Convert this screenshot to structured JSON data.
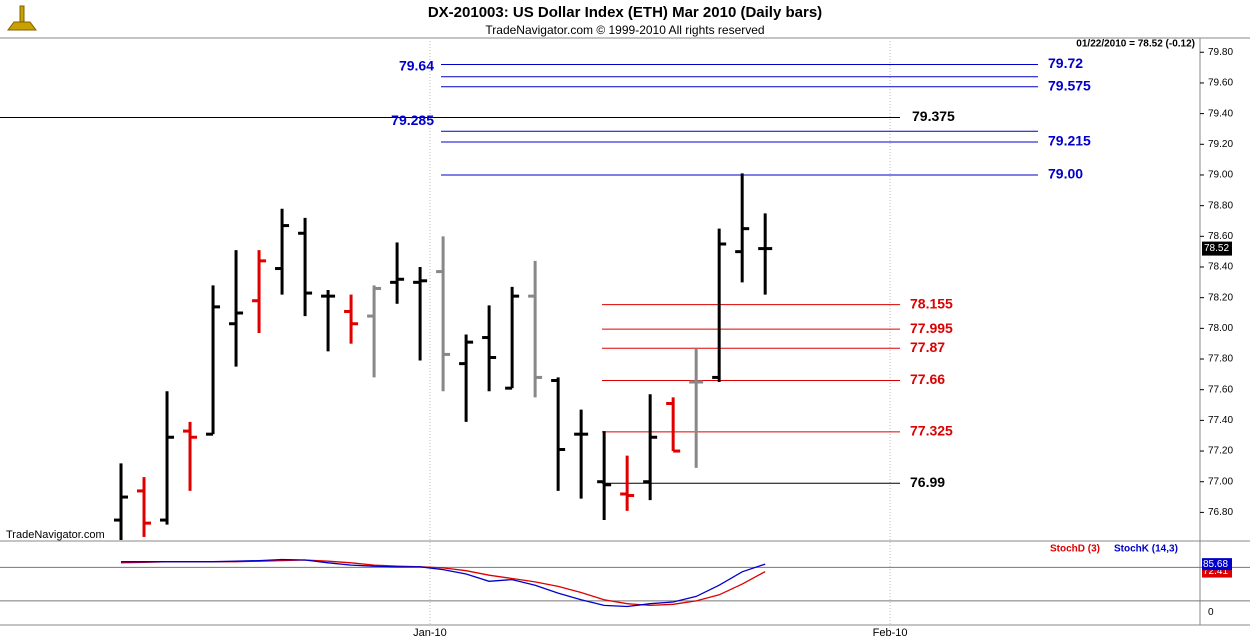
{
  "chart_data": [
    {
      "type": "ohlc",
      "title": "DX-201003:  US Dollar Index (ETH) Mar 2010  (Daily bars)",
      "subtitle": "TradeNavigator.com © 1999-2010 All rights reserved",
      "header": "01/22/2010 = 78.52 (-0.12)",
      "watermark": "TradeNavigator.com",
      "x": [
        0,
        1,
        2,
        3,
        4,
        5,
        6,
        7,
        8,
        9,
        10,
        11,
        12,
        13,
        14,
        15,
        16,
        17,
        18,
        19,
        20,
        21,
        22,
        23,
        24,
        25,
        26,
        27,
        28
      ],
      "open": [
        76.75,
        76.94,
        76.75,
        77.33,
        77.31,
        78.03,
        78.18,
        78.39,
        78.62,
        78.21,
        78.11,
        78.08,
        78.3,
        78.3,
        78.37,
        77.77,
        77.94,
        77.61,
        78.21,
        77.66,
        77.31,
        77.0,
        76.92,
        77.0,
        77.51,
        77.65,
        77.68,
        78.5,
        78.52
      ],
      "high": [
        77.12,
        77.03,
        77.59,
        77.39,
        78.28,
        78.51,
        78.51,
        78.78,
        78.72,
        78.25,
        78.22,
        78.28,
        78.56,
        78.4,
        78.6,
        77.96,
        78.15,
        78.27,
        78.44,
        77.68,
        77.47,
        77.33,
        77.17,
        77.57,
        77.55,
        77.87,
        78.65,
        79.01,
        78.75
      ],
      "low": [
        76.62,
        76.64,
        76.72,
        76.94,
        77.31,
        77.75,
        77.97,
        78.22,
        78.08,
        77.85,
        77.9,
        77.68,
        78.16,
        77.79,
        77.59,
        77.39,
        77.59,
        77.61,
        77.55,
        76.94,
        76.89,
        76.75,
        76.81,
        76.88,
        77.2,
        77.09,
        77.65,
        78.3,
        78.22
      ],
      "close": [
        76.9,
        76.73,
        77.29,
        77.29,
        78.14,
        78.1,
        78.44,
        78.67,
        78.23,
        78.21,
        78.03,
        78.26,
        78.32,
        78.31,
        77.83,
        77.91,
        77.81,
        78.21,
        77.68,
        77.21,
        77.31,
        76.98,
        76.91,
        77.29,
        77.2,
        77.65,
        78.55,
        78.65,
        78.52
      ],
      "colors": [
        "#000",
        "#e00000",
        "#000",
        "#e00000",
        "#000",
        "#000",
        "#e00000",
        "#000",
        "#000",
        "#000",
        "#e00000",
        "#888",
        "#000",
        "#000",
        "#888",
        "#000",
        "#000",
        "#000",
        "#888",
        "#000",
        "#000",
        "#000",
        "#e00000",
        "#000",
        "#e00000",
        "#888",
        "#000",
        "#000",
        "#000"
      ],
      "xlim": [
        -5.26,
        46.9
      ],
      "xticks": [
        {
          "value": 13.43,
          "label": "Jan-10"
        },
        {
          "value": 33.43,
          "label": "Feb-10"
        }
      ],
      "ylim": [
        76.62,
        79.88
      ],
      "yticks": [
        {
          "value": 76.8,
          "label": "76.80"
        },
        {
          "value": 77,
          "label": "77.00"
        },
        {
          "value": 77.2,
          "label": "77.20"
        },
        {
          "value": 77.4,
          "label": "77.40"
        },
        {
          "value": 77.6,
          "label": "77.60"
        },
        {
          "value": 77.8,
          "label": "77.80"
        },
        {
          "value": 78,
          "label": "78.00"
        },
        {
          "value": 78.2,
          "label": "78.20"
        },
        {
          "value": 78.4,
          "label": "78.40"
        },
        {
          "value": 78.6,
          "label": "78.60"
        },
        {
          "value": 78.8,
          "label": "78.80"
        },
        {
          "value": 79,
          "label": "79.00"
        },
        {
          "value": 79.2,
          "label": "79.20"
        },
        {
          "value": 79.4,
          "label": "79.40"
        },
        {
          "value": 79.6,
          "label": "79.60"
        },
        {
          "value": 79.8,
          "label": "79.80"
        }
      ],
      "last_price": 78.52,
      "levels": [
        {
          "value": 79.72,
          "color": "#0000cc"
        },
        {
          "value": 79.64,
          "color": "#0000cc"
        },
        {
          "value": 79.575,
          "color": "#0000cc"
        },
        {
          "value": 79.375,
          "color": "#000000"
        },
        {
          "value": 79.285,
          "color": "#0000cc"
        },
        {
          "value": 79.215,
          "color": "#0000cc"
        },
        {
          "value": 79,
          "label": "79.00",
          "color": "#0000cc"
        },
        {
          "value": 78.155,
          "color": "#dd0000"
        },
        {
          "value": 77.995,
          "color": "#dd0000"
        },
        {
          "value": 77.87,
          "color": "#dd0000"
        },
        {
          "value": 77.66,
          "color": "#dd0000"
        },
        {
          "value": 77.325,
          "color": "#dd0000"
        },
        {
          "value": 76.99,
          "color": "#000000"
        }
      ]
    },
    {
      "type": "line",
      "x": [
        0,
        1,
        2,
        3,
        4,
        5,
        6,
        7,
        8,
        9,
        10,
        11,
        12,
        13,
        14,
        15,
        16,
        17,
        18,
        19,
        20,
        21,
        22,
        23,
        24,
        25,
        26,
        27,
        28
      ],
      "series": [
        {
          "name": "StochD (3)",
          "color": "#dd0000",
          "values": [
            88,
            89,
            90,
            90,
            90,
            90,
            91,
            92,
            93,
            91,
            88,
            84,
            82,
            81,
            79,
            74,
            66,
            60,
            54,
            46,
            35,
            22,
            15,
            12,
            14,
            20,
            31,
            50,
            72.41
          ]
        },
        {
          "name": "StochK (14,3)",
          "color": "#0000cc",
          "values": [
            90,
            90,
            90,
            90,
            90,
            91,
            92,
            94,
            93,
            88,
            84,
            82,
            81,
            81,
            76,
            68,
            55,
            58,
            48,
            34,
            22,
            12,
            10,
            15,
            18,
            28,
            48,
            72,
            85.68
          ]
        }
      ],
      "ylim": [
        -23,
        127
      ],
      "yticks": [
        0
      ],
      "levels": [
        20,
        80
      ]
    }
  ]
}
